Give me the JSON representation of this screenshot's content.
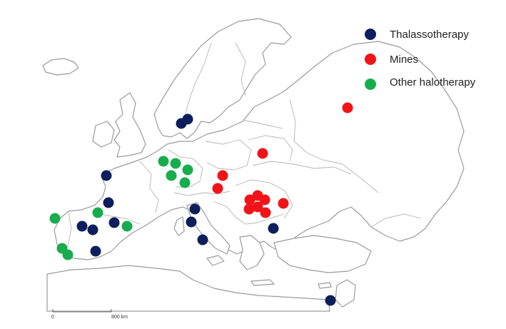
{
  "colors": {
    "thalassotherapy": "#0c1f5c",
    "mines": "#f01418",
    "other_halotherapy": "#17ad4e"
  },
  "legend": [
    {
      "key": "thalassotherapy",
      "label": "Thalassotherapy",
      "color": "#0c1f5c"
    },
    {
      "key": "mines",
      "label": "Mines",
      "color": "#f01418"
    },
    {
      "key": "other_halotherapy",
      "label": "Other halotherapy",
      "color": "#17ad4e"
    }
  ],
  "scale_bar": {
    "start_label": "0",
    "end_label": "800 km"
  },
  "sites": {
    "thalassotherapy": [
      [
        254,
        173
      ],
      [
        263,
        167
      ],
      [
        149,
        246
      ],
      [
        152,
        284
      ],
      [
        115,
        317
      ],
      [
        130,
        322
      ],
      [
        160,
        312
      ],
      [
        134,
        352
      ],
      [
        273,
        293
      ],
      [
        268,
        311
      ],
      [
        284,
        336
      ],
      [
        383,
        320
      ],
      [
        463,
        421
      ]
    ],
    "mines": [
      [
        487,
        151
      ],
      [
        368,
        215
      ],
      [
        312,
        246
      ],
      [
        305,
        264
      ],
      [
        350,
        280
      ],
      [
        361,
        274
      ],
      [
        371,
        280
      ],
      [
        397,
        285
      ],
      [
        349,
        293
      ],
      [
        361,
        290
      ],
      [
        372,
        298
      ]
    ],
    "other_halotherapy": [
      [
        229,
        226
      ],
      [
        246,
        229
      ],
      [
        263,
        238
      ],
      [
        240,
        246
      ],
      [
        259,
        256
      ],
      [
        77,
        306
      ],
      [
        137,
        298
      ],
      [
        178,
        317
      ],
      [
        87,
        348
      ],
      [
        95,
        357
      ]
    ]
  }
}
